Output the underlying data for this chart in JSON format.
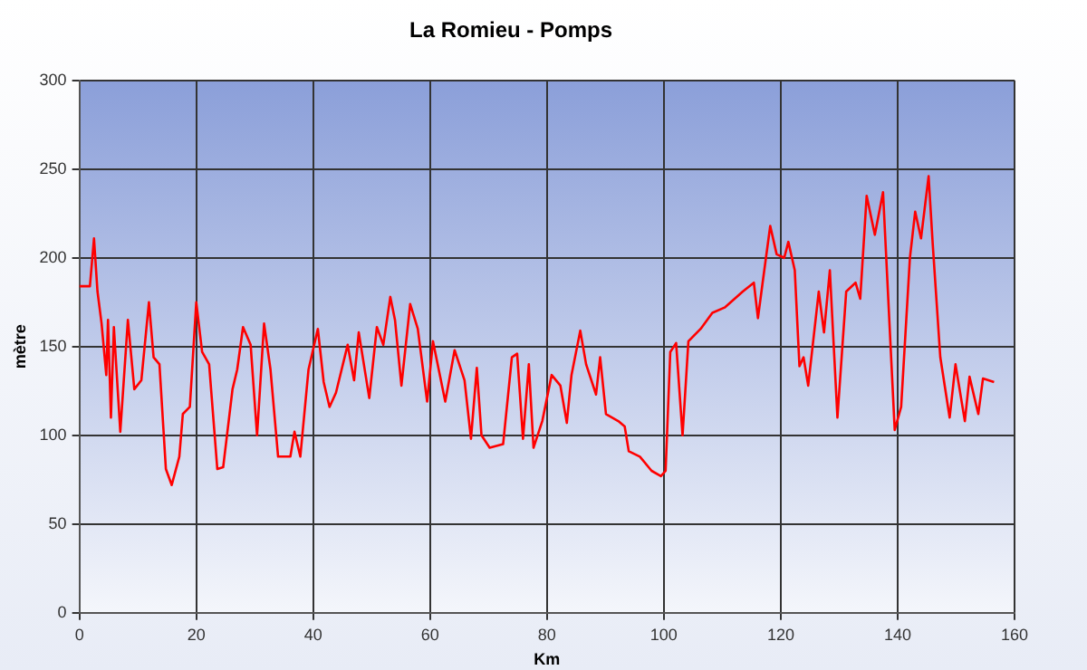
{
  "chart_data": {
    "type": "line",
    "title": "La Romieu - Pomps",
    "xlabel": "Km",
    "ylabel": "mètre",
    "xlim": [
      0,
      160
    ],
    "xticks": [
      0,
      20,
      40,
      60,
      80,
      100,
      120,
      140,
      160
    ],
    "ylim": [
      0,
      300
    ],
    "yticks": [
      0,
      50,
      100,
      150,
      200,
      250,
      300
    ],
    "grid": true,
    "legend": false,
    "marker": "none",
    "line_style": "solid",
    "series": [
      {
        "color": "#ff0000",
        "x": [
          0,
          1.8,
          2.5,
          3.1,
          3.8,
          4.6,
          4.9,
          5.4,
          5.9,
          7.0,
          8.3,
          9.4,
          10.6,
          11.9,
          12.7,
          13.7,
          14.8,
          15.8,
          17.1,
          17.7,
          18.9,
          20.0,
          21.0,
          22.2,
          23.6,
          24.6,
          26.2,
          27.0,
          28.0,
          29.3,
          30.4,
          31.6,
          32.7,
          34.0,
          36.1,
          36.8,
          37.8,
          39.2,
          40.8,
          41.8,
          42.8,
          43.9,
          45.9,
          47.0,
          47.8,
          49.6,
          50.9,
          52.0,
          53.2,
          54.0,
          55.1,
          56.6,
          57.9,
          59.5,
          60.5,
          62.6,
          64.2,
          65.9,
          67.0,
          68.0,
          68.8,
          70.2,
          72.5,
          74.0,
          74.9,
          75.9,
          76.9,
          77.7,
          79.2,
          80.8,
          82.3,
          83.4,
          84.2,
          85.7,
          86.7,
          88.4,
          89.1,
          90.1,
          92.2,
          93.3,
          94.0,
          95.9,
          97.9,
          99.5,
          100.3,
          101.1,
          102.1,
          103.2,
          104.2,
          106.3,
          108.3,
          110.4,
          113.5,
          115.4,
          116.1,
          116.9,
          118.2,
          119.3,
          120.6,
          121.3,
          122.4,
          123.2,
          123.9,
          124.7,
          126.5,
          127.4,
          128.4,
          129.7,
          131.2,
          132.8,
          133.6,
          134.7,
          136.1,
          137.5,
          139.5,
          140.6,
          142.1,
          143.0,
          144.0,
          145.3,
          146.0,
          147.3,
          148.9,
          149.9,
          151.5,
          152.3,
          153.8,
          154.6,
          156.5
        ],
        "values": [
          184,
          184,
          211,
          181,
          163,
          134,
          165,
          110,
          161,
          102,
          165,
          126,
          131,
          175,
          144,
          140,
          81,
          72,
          88,
          112,
          116,
          175,
          147,
          140,
          81,
          82,
          126,
          137,
          161,
          151,
          100,
          163,
          137,
          88,
          88,
          102,
          88,
          137,
          160,
          130,
          116,
          124,
          151,
          131,
          158,
          121,
          161,
          151,
          178,
          165,
          128,
          174,
          160,
          119,
          153,
          119,
          148,
          131,
          98,
          138,
          100,
          93,
          95,
          144,
          146,
          98,
          140,
          93,
          108,
          134,
          128,
          107,
          134,
          159,
          140,
          123,
          144,
          112,
          108,
          105,
          91,
          88,
          80,
          77,
          80,
          147,
          152,
          100,
          153,
          160,
          169,
          172,
          181,
          186,
          166,
          186,
          218,
          202,
          200,
          209,
          193,
          139,
          144,
          128,
          181,
          158,
          193,
          110,
          181,
          186,
          177,
          235,
          213,
          237,
          103,
          116,
          200,
          226,
          211,
          246,
          208,
          144,
          110,
          140,
          108,
          133,
          112,
          132,
          130
        ]
      }
    ]
  }
}
